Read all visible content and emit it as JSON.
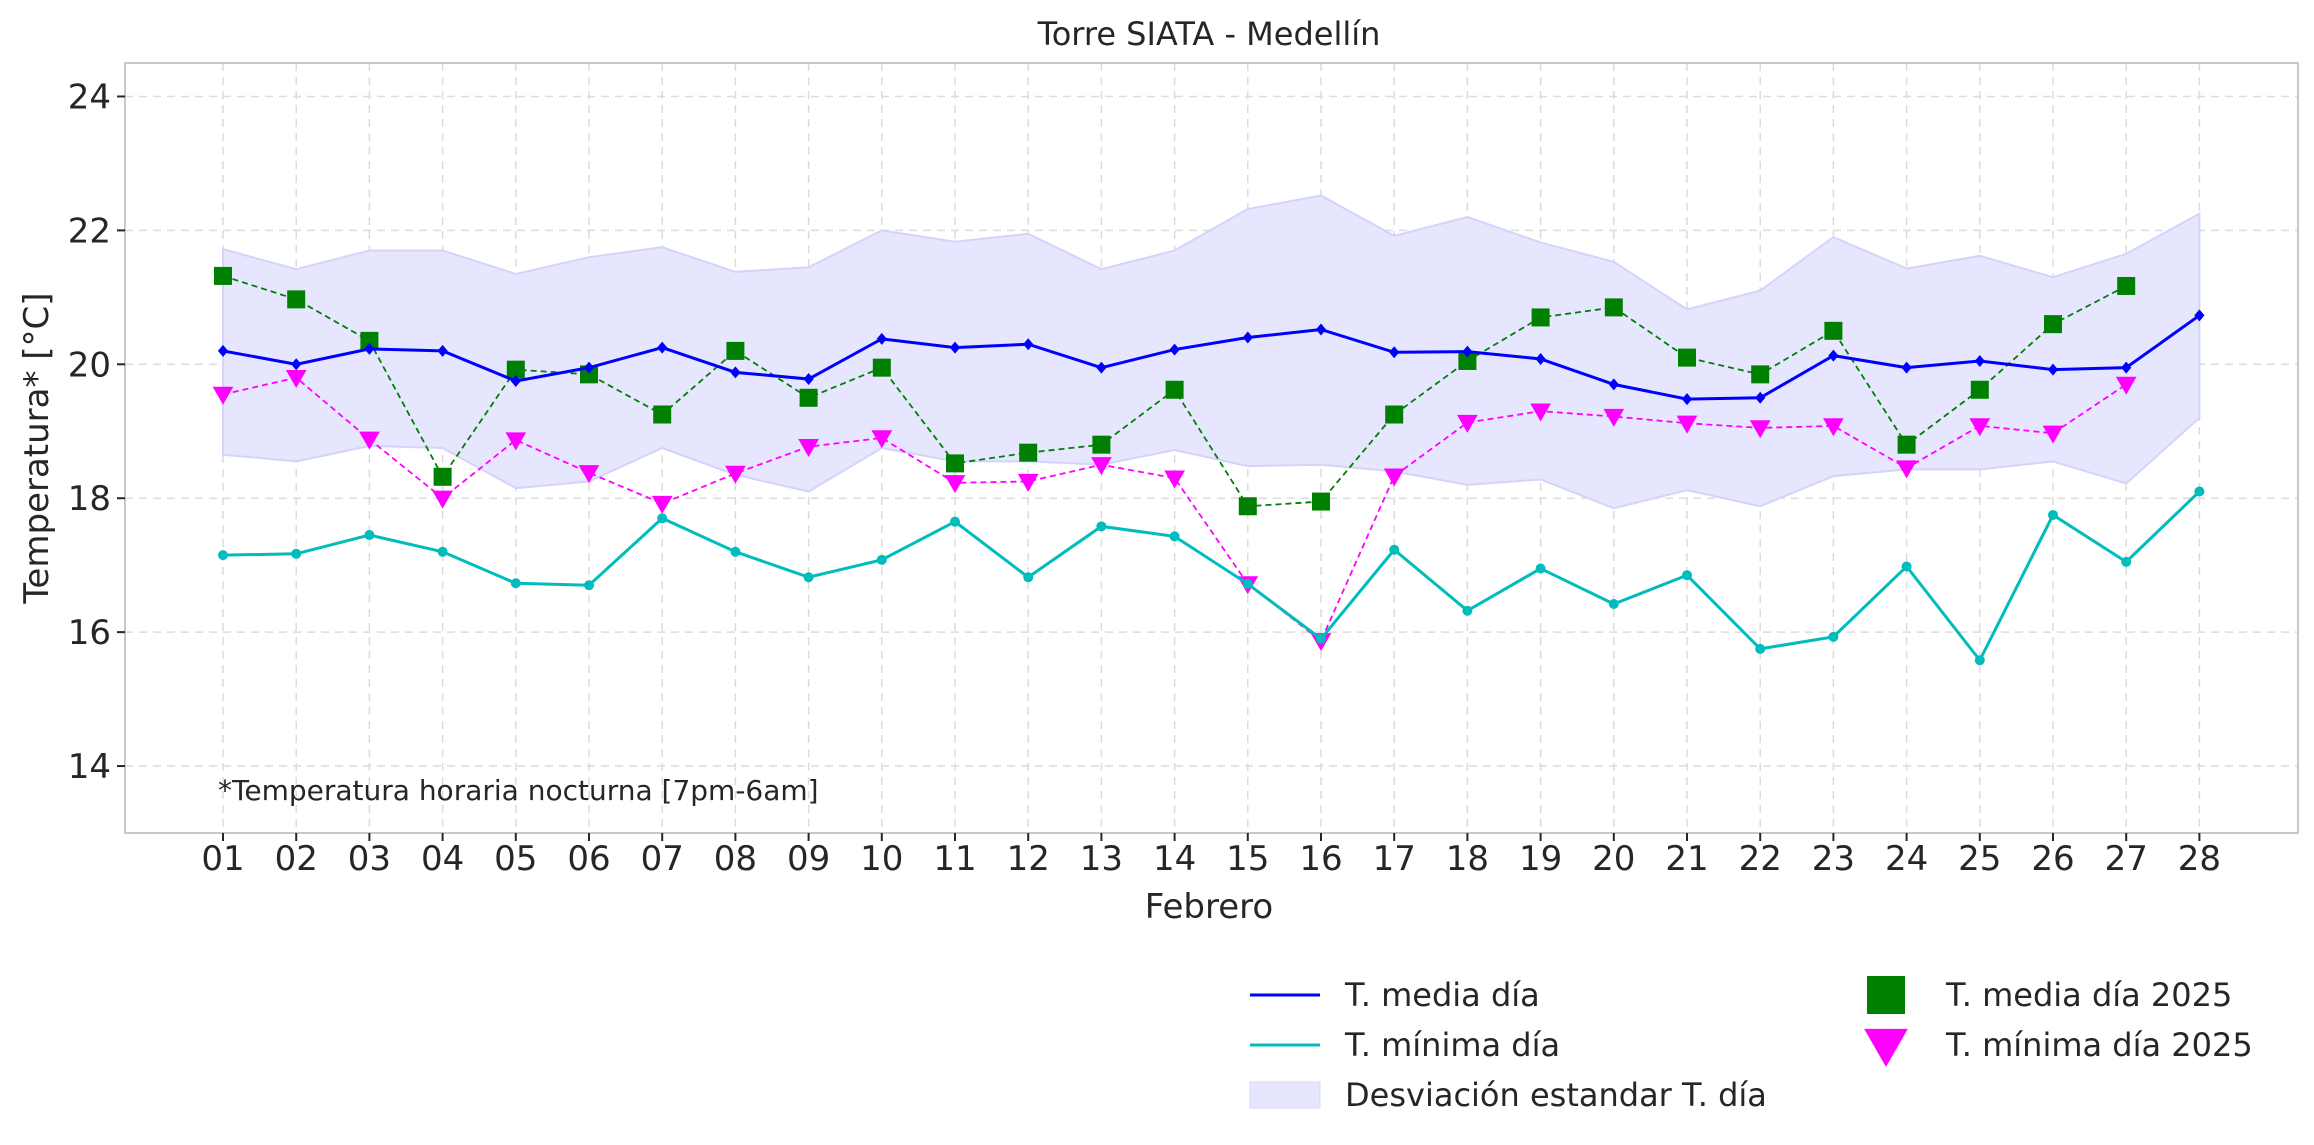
{
  "chart_data": {
    "type": "line",
    "title": "Torre SIATA - Medellín",
    "xlabel": "Febrero",
    "ylabel": "Temperatura* [°C]",
    "note": "*Temperatura horaria nocturna [7pm-6am]",
    "ylim": [
      13.0,
      24.5
    ],
    "yticks": [
      14,
      16,
      18,
      20,
      22,
      24
    ],
    "grid": true,
    "legend_position": "bottom-right, outside plot",
    "categories": [
      "01",
      "02",
      "03",
      "04",
      "05",
      "06",
      "07",
      "08",
      "09",
      "10",
      "11",
      "12",
      "13",
      "14",
      "15",
      "16",
      "17",
      "18",
      "19",
      "20",
      "21",
      "22",
      "23",
      "24",
      "25",
      "26",
      "27",
      "28"
    ],
    "series": [
      {
        "name": "T. media día",
        "style": "line",
        "color": "#0000ff",
        "marker": "diamond",
        "values": [
          20.2,
          20.0,
          20.23,
          20.2,
          19.75,
          19.95,
          20.25,
          19.88,
          19.78,
          20.38,
          20.25,
          20.3,
          19.95,
          20.22,
          20.4,
          20.52,
          20.18,
          20.19,
          20.08,
          19.7,
          19.48,
          19.5,
          20.13,
          19.95,
          20.05,
          19.92,
          19.95,
          20.73
        ]
      },
      {
        "name": "T. mínima día",
        "style": "line",
        "color": "#00bcbc",
        "marker": "circle",
        "values": [
          17.15,
          17.17,
          17.45,
          17.2,
          16.73,
          16.7,
          17.7,
          17.2,
          16.82,
          17.08,
          17.65,
          16.82,
          17.58,
          17.43,
          16.72,
          15.9,
          17.23,
          16.32,
          16.95,
          16.42,
          16.85,
          15.75,
          15.93,
          16.98,
          15.58,
          17.75,
          17.05,
          18.1
        ]
      },
      {
        "name": "T. media día 2025",
        "style": "dashed-markers",
        "color": "#008000",
        "marker": "square",
        "values": [
          21.32,
          20.97,
          20.35,
          18.32,
          19.92,
          19.85,
          19.25,
          20.2,
          19.5,
          19.95,
          18.52,
          18.68,
          18.8,
          19.62,
          17.88,
          17.95,
          19.25,
          20.05,
          20.7,
          20.85,
          20.1,
          19.85,
          20.5,
          18.8,
          19.62,
          20.6,
          21.17,
          null
        ]
      },
      {
        "name": "T. mínima día 2025",
        "style": "dashed-markers",
        "color": "#ff00ff",
        "marker": "triangle-down",
        "values": [
          19.55,
          19.8,
          18.88,
          18.0,
          18.87,
          18.38,
          17.92,
          18.37,
          18.77,
          18.9,
          18.23,
          18.25,
          18.5,
          18.3,
          16.72,
          15.87,
          18.33,
          19.13,
          19.3,
          19.22,
          19.12,
          19.05,
          19.08,
          18.45,
          19.08,
          18.97,
          19.7,
          null
        ]
      }
    ],
    "band": {
      "name": "Desviación estandar T. día",
      "color": "#e6e6ff",
      "upper": [
        21.72,
        21.42,
        21.7,
        21.7,
        21.35,
        21.6,
        21.75,
        21.38,
        21.45,
        22.0,
        21.83,
        21.95,
        21.42,
        21.7,
        22.32,
        22.52,
        21.92,
        22.2,
        21.82,
        21.53,
        20.82,
        21.1,
        21.9,
        21.43,
        21.62,
        21.3,
        21.65,
        22.25
      ],
      "lower": [
        18.65,
        18.55,
        18.78,
        18.75,
        18.15,
        18.25,
        18.75,
        18.35,
        18.1,
        18.75,
        18.55,
        18.55,
        18.5,
        18.72,
        18.48,
        18.5,
        18.4,
        18.2,
        18.28,
        17.85,
        18.12,
        17.88,
        18.33,
        18.43,
        18.43,
        18.55,
        18.22,
        19.2
      ]
    }
  }
}
